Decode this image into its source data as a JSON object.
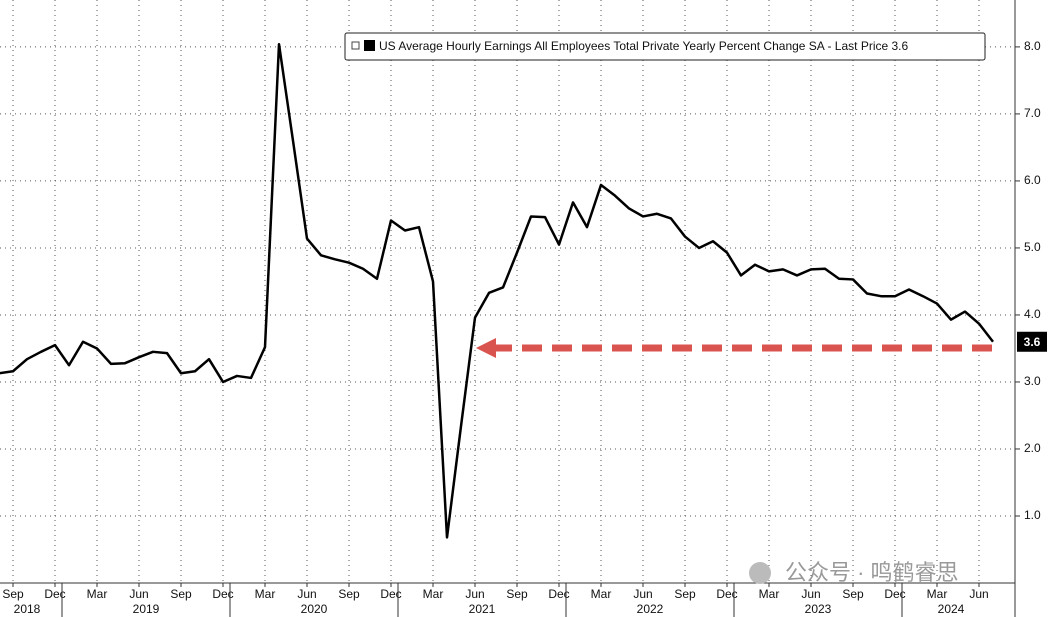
{
  "chart_data": {
    "type": "line",
    "watermark": "公众号 · 鸣鹤睿思",
    "x": [
      "2018-08",
      "2018-09",
      "2018-10",
      "2018-11",
      "2018-12",
      "2019-01",
      "2019-02",
      "2019-03",
      "2019-04",
      "2019-05",
      "2019-06",
      "2019-07",
      "2019-08",
      "2019-09",
      "2019-10",
      "2019-11",
      "2019-12",
      "2020-01",
      "2020-02",
      "2020-03",
      "2020-04",
      "2020-05",
      "2020-06",
      "2020-07",
      "2020-08",
      "2020-09",
      "2020-10",
      "2020-11",
      "2020-12",
      "2021-01",
      "2021-02",
      "2021-03",
      "2021-04",
      "2021-05",
      "2021-06",
      "2021-07",
      "2021-08",
      "2021-09",
      "2021-10",
      "2021-11",
      "2021-12",
      "2022-01",
      "2022-02",
      "2022-03",
      "2022-04",
      "2022-05",
      "2022-06",
      "2022-07",
      "2022-08",
      "2022-09",
      "2022-10",
      "2022-11",
      "2022-12",
      "2023-01",
      "2023-02",
      "2023-03",
      "2023-04",
      "2023-05",
      "2023-06",
      "2023-07",
      "2023-08",
      "2023-09",
      "2023-10",
      "2023-11",
      "2023-12",
      "2024-01",
      "2024-02",
      "2024-03",
      "2024-04",
      "2024-05",
      "2024-06",
      "2024-07"
    ],
    "series": [
      {
        "name": "US Average Hourly Earnings All Employees Total Private Yearly Percent Change SA - Last Price 3.6",
        "color": "#000000",
        "values": [
          3.13,
          3.16,
          3.34,
          3.45,
          3.55,
          3.25,
          3.6,
          3.5,
          3.27,
          3.28,
          3.37,
          3.45,
          3.43,
          3.13,
          3.16,
          3.34,
          3.0,
          3.09,
          3.06,
          3.52,
          8.04,
          6.6,
          5.14,
          4.89,
          4.83,
          4.78,
          4.69,
          4.54,
          5.41,
          5.26,
          5.31,
          4.5,
          0.68,
          2.34,
          3.96,
          4.33,
          4.41,
          4.93,
          5.47,
          5.46,
          5.05,
          5.68,
          5.31,
          5.94,
          5.78,
          5.59,
          5.47,
          5.51,
          5.44,
          5.17,
          5.0,
          5.1,
          4.93,
          4.59,
          4.75,
          4.65,
          4.68,
          4.59,
          4.68,
          4.69,
          4.54,
          4.53,
          4.32,
          4.28,
          4.28,
          4.38,
          4.28,
          4.17,
          3.93,
          4.05,
          3.87,
          3.6
        ]
      }
    ],
    "xticks": [
      {
        "value": "2018-09",
        "label": "Sep"
      },
      {
        "value": "2018-12",
        "label": "Dec"
      },
      {
        "value": "2019-03",
        "label": "Mar"
      },
      {
        "value": "2019-06",
        "label": "Jun"
      },
      {
        "value": "2019-09",
        "label": "Sep"
      },
      {
        "value": "2019-12",
        "label": "Dec"
      },
      {
        "value": "2020-03",
        "label": "Mar"
      },
      {
        "value": "2020-06",
        "label": "Jun"
      },
      {
        "value": "2020-09",
        "label": "Sep"
      },
      {
        "value": "2020-12",
        "label": "Dec"
      },
      {
        "value": "2021-03",
        "label": "Mar"
      },
      {
        "value": "2021-06",
        "label": "Jun"
      },
      {
        "value": "2021-09",
        "label": "Sep"
      },
      {
        "value": "2021-12",
        "label": "Dec"
      },
      {
        "value": "2022-03",
        "label": "Mar"
      },
      {
        "value": "2022-06",
        "label": "Jun"
      },
      {
        "value": "2022-09",
        "label": "Sep"
      },
      {
        "value": "2022-12",
        "label": "Dec"
      },
      {
        "value": "2023-03",
        "label": "Mar"
      },
      {
        "value": "2023-06",
        "label": "Jun"
      },
      {
        "value": "2023-09",
        "label": "Sep"
      },
      {
        "value": "2023-12",
        "label": "Dec"
      },
      {
        "value": "2024-03",
        "label": "Mar"
      },
      {
        "value": "2024-06",
        "label": "Jun"
      }
    ],
    "years": [
      "2018",
      "2019",
      "2020",
      "2021",
      "2022",
      "2023",
      "2024"
    ],
    "ylim": [
      0,
      8.7
    ],
    "yticks": [
      {
        "value": 1,
        "label": "1.0"
      },
      {
        "value": 2,
        "label": "2.0"
      },
      {
        "value": 3,
        "label": "3.0"
      },
      {
        "value": 4,
        "label": "4.0"
      },
      {
        "value": 5,
        "label": "5.0"
      },
      {
        "value": 6,
        "label": "6.0"
      },
      {
        "value": 7,
        "label": "7.0"
      },
      {
        "value": 8,
        "label": "8.0"
      }
    ],
    "grid": true
  }
}
